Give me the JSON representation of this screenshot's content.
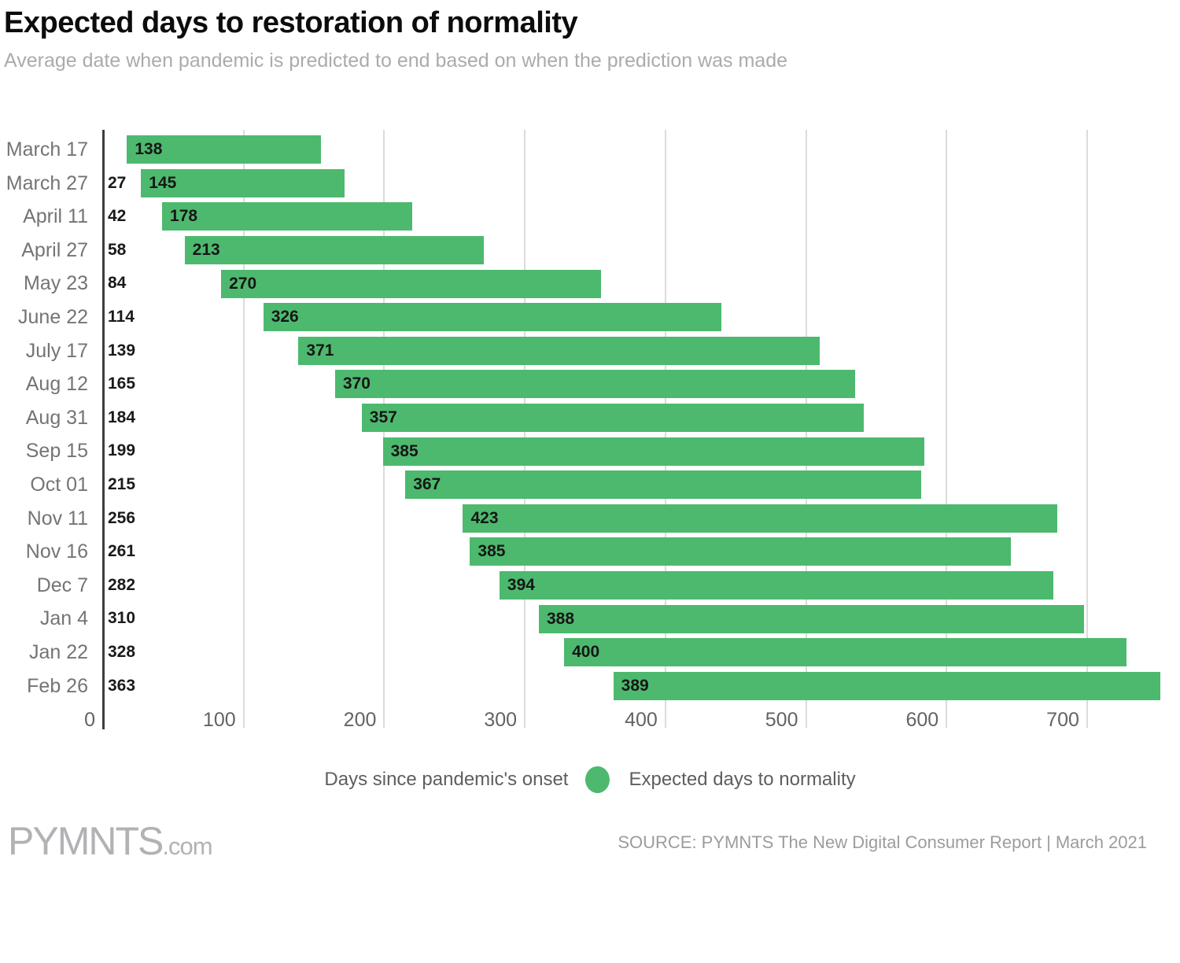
{
  "header": {
    "title": "Expected days to restoration of normality",
    "subtitle": "Average date when pandemic is predicted to end based on when the prediction was made"
  },
  "chart_data": {
    "type": "bar",
    "orientation": "horizontal",
    "title": "Expected days to restoration of normality",
    "subtitle": "Average date when pandemic is predicted to end based on when the prediction was made",
    "categories": [
      "March 17",
      "March 27",
      "April 11",
      "April 27",
      "May 23",
      "June 22",
      "July 17",
      "Aug 12",
      "Aug 31",
      "Sep 15",
      "Oct 01",
      "Nov 11",
      "Nov 16",
      "Dec 7",
      "Jan 4",
      "Jan 22",
      "Feb 26"
    ],
    "series": [
      {
        "name": "Days since pandemic's onset",
        "role": "bar start offset",
        "values": [
          17,
          27,
          42,
          58,
          84,
          114,
          139,
          165,
          184,
          199,
          215,
          256,
          261,
          282,
          310,
          328,
          363
        ],
        "labels": [
          "",
          "27",
          "42",
          "58",
          "84",
          "114",
          "139",
          "165",
          "184",
          "199",
          "215",
          "256",
          "261",
          "282",
          "310",
          "328",
          "363"
        ]
      },
      {
        "name": "Expected days to normality",
        "color": "#4db96e",
        "values": [
          138,
          145,
          178,
          213,
          270,
          326,
          371,
          370,
          357,
          385,
          367,
          423,
          385,
          394,
          388,
          400,
          389
        ],
        "labels": [
          "138",
          "145",
          "178",
          "213",
          "270",
          "326",
          "371",
          "370",
          "357",
          "385",
          "367",
          "423",
          "385",
          "394",
          "388",
          "400",
          "389"
        ]
      }
    ],
    "xlim": [
      0,
      760
    ],
    "x_axis": {
      "ticks": [
        0,
        100,
        200,
        300,
        400,
        500,
        600,
        700
      ],
      "tick_labels": [
        "0",
        "100",
        "200",
        "300",
        "400",
        "500",
        "600",
        "700"
      ]
    },
    "grid": "vertical major gridlines, dark solid axis at 0",
    "legend_position": "bottom-center",
    "bar_label_position": "inside-left"
  },
  "legend": {
    "items": [
      {
        "label": "Days since pandemic's onset",
        "marker": "none"
      },
      {
        "label": "Expected days to normality",
        "marker": "circle",
        "marker_color": "#4db96e"
      }
    ]
  },
  "footer": {
    "logo_main": "PYMNTS",
    "logo_suffix": ".com",
    "source_label": "SOURCE: PYMNTS The New Digital Consumer Report",
    "separator": "|",
    "date": "March 2021"
  },
  "colors": {
    "bar_green": "#4db96e",
    "axis_line": "#3e3e3e",
    "gridline": "#dcdcdc",
    "category_label": "#747474",
    "value_label": "#161616",
    "subtitle_gray": "#ababab",
    "source_gray": "#9c9c9c"
  }
}
